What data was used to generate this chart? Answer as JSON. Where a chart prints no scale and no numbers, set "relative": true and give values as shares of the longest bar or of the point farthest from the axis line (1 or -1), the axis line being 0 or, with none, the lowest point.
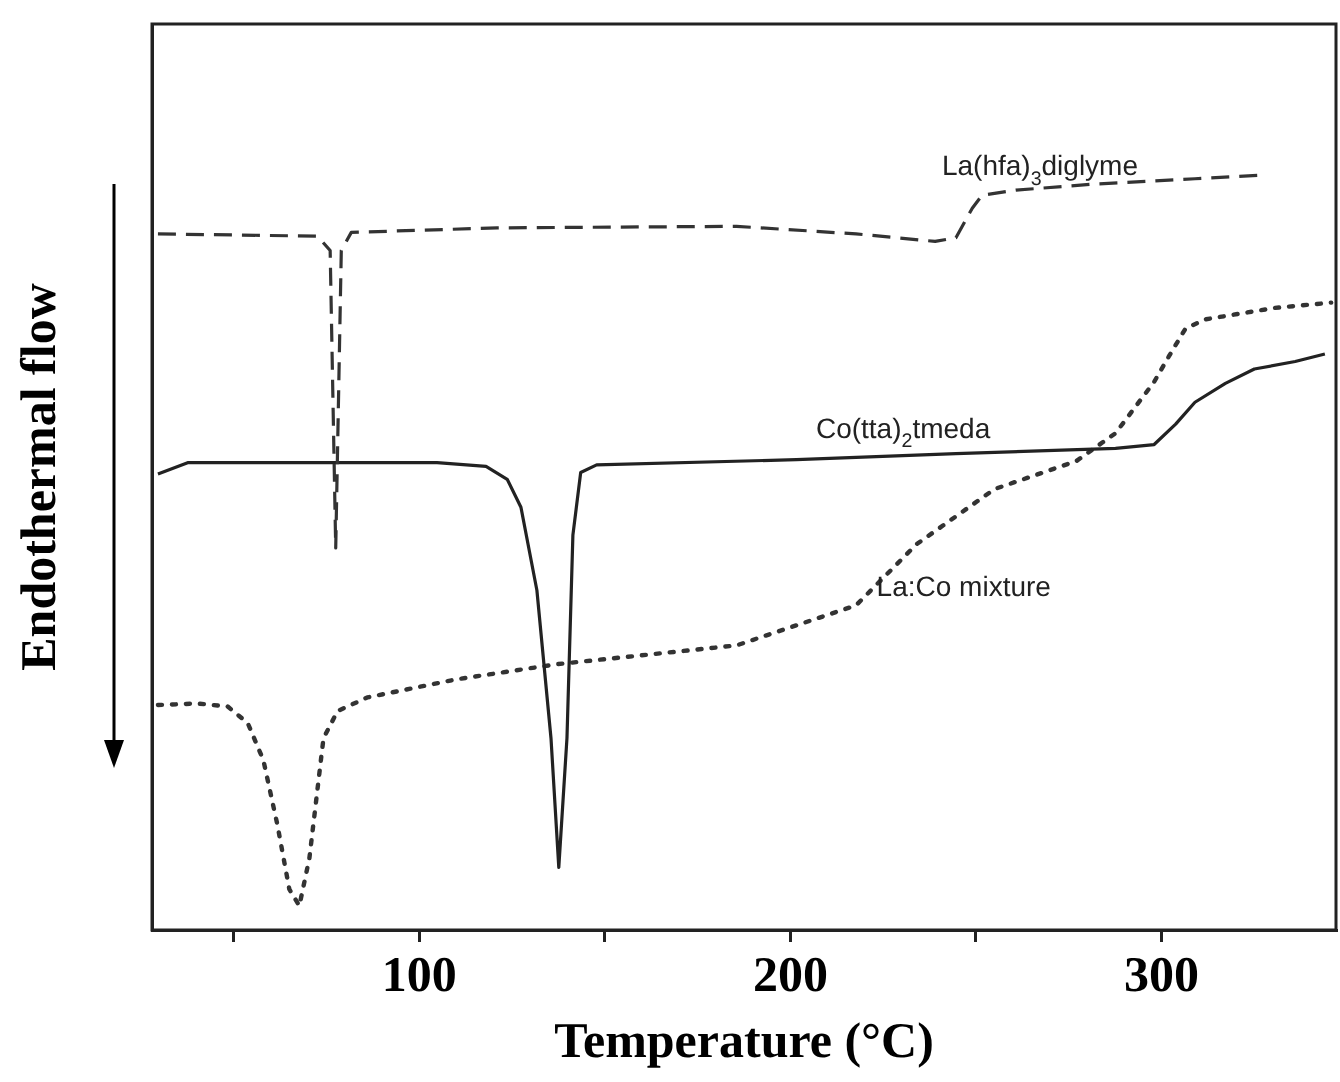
{
  "chart_data": {
    "type": "line",
    "relative": true,
    "xlabel": "Temperature (°C)",
    "ylabel": "Endothermal flow",
    "xlim": [
      28,
      347
    ],
    "xticks": [
      {
        "value": 50,
        "label": null
      },
      100,
      {
        "value": 150,
        "label": null
      },
      200,
      {
        "value": 250,
        "label": null
      },
      300
    ],
    "grid": false,
    "legend": false,
    "marker": "none",
    "series": [
      {
        "name": "La(hfa)$_{3}$diglyme",
        "color": "#333333",
        "line_style": "dashed",
        "x": [
          29.6,
          72.6,
          76,
          77.5,
          79,
          81.7,
          121,
          185.5,
          217.7,
          239,
          244.6,
          249,
          251.6,
          260.8,
          282,
          309,
          328
        ],
        "values": [
          0.922,
          0.919,
          0.9,
          0.506,
          0.9,
          0.924,
          0.93,
          0.932,
          0.922,
          0.912,
          0.917,
          0.956,
          0.973,
          0.98,
          0.988,
          0.995,
          1
        ]
      },
      {
        "name": "Co(tta)$_{2}$tmeda",
        "color": "#222222",
        "line_style": "solid",
        "x": [
          29.6,
          37.6,
          104.8,
          118,
          123.7,
          127.4,
          131.7,
          135.5,
          137.6,
          139.8,
          141.4,
          143.5,
          147.8,
          201.6,
          244.6,
          287.6,
          298,
          303.8,
          309,
          317.2,
          325,
          336,
          344
        ],
        "values": [
          0.604,
          0.619,
          0.619,
          0.614,
          0.597,
          0.56,
          0.45,
          0.254,
          0.083,
          0.254,
          0.523,
          0.606,
          0.616,
          0.623,
          0.631,
          0.638,
          0.643,
          0.67,
          0.699,
          0.724,
          0.743,
          0.753,
          0.763
        ]
      },
      {
        "name": "La:Co mixture",
        "color": "#333333",
        "line_style": "dotted",
        "x": [
          29.6,
          40.3,
          48.4,
          53.8,
          58,
          61.8,
          65,
          67.7,
          70.4,
          74.2,
          78,
          86,
          110,
          137,
          185.5,
          217.7,
          234,
          255,
          277,
          287.6,
          298,
          302,
          306.5,
          312,
          330.6,
          345.7
        ],
        "values": [
          0.298,
          0.3,
          0.296,
          0.274,
          0.225,
          0.139,
          0.054,
          0.032,
          0.095,
          0.254,
          0.29,
          0.308,
          0.332,
          0.352,
          0.377,
          0.43,
          0.511,
          0.584,
          0.621,
          0.658,
          0.726,
          0.76,
          0.797,
          0.809,
          0.824,
          0.831
        ]
      }
    ]
  }
}
